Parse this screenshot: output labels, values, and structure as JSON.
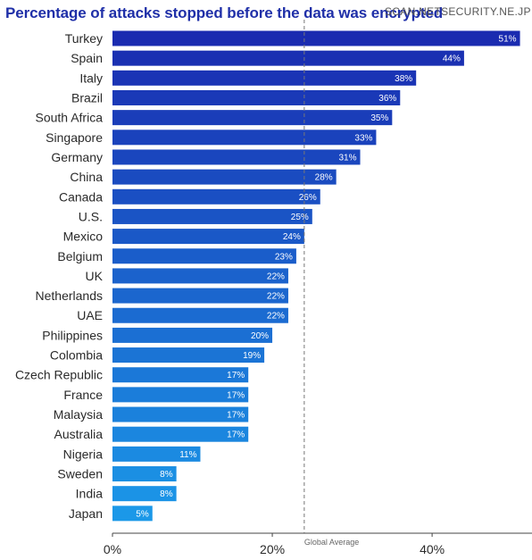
{
  "title": "Percentage of attacks stopped before the data was encrypted",
  "watermark": "SCAN.NETSECURITY.NE.JP",
  "chart_data": {
    "type": "bar",
    "orientation": "horizontal",
    "title": "Percentage of attacks stopped before the data was encrypted",
    "categories": [
      "Turkey",
      "Spain",
      "Italy",
      "Brazil",
      "South Africa",
      "Singapore",
      "Germany",
      "China",
      "Canada",
      "U.S.",
      "Mexico",
      "Belgium",
      "UK",
      "Netherlands",
      "UAE",
      "Philippines",
      "Colombia",
      "Czech Republic",
      "France",
      "Malaysia",
      "Australia",
      "Nigeria",
      "Sweden",
      "India",
      "Japan"
    ],
    "values": [
      51,
      44,
      38,
      36,
      35,
      33,
      31,
      28,
      26,
      25,
      24,
      23,
      22,
      22,
      22,
      20,
      19,
      17,
      17,
      17,
      17,
      11,
      8,
      8,
      5
    ],
    "value_labels": [
      "51%",
      "44%",
      "38%",
      "36%",
      "35%",
      "33%",
      "31%",
      "28%",
      "26%",
      "25%",
      "24%",
      "23%",
      "22%",
      "22%",
      "22%",
      "20%",
      "19%",
      "17%",
      "17%",
      "17%",
      "17%",
      "11%",
      "8%",
      "8%",
      "5%"
    ],
    "x_ticks": [
      0,
      20,
      40
    ],
    "x_tick_labels": [
      "0%",
      "20%",
      "40%"
    ],
    "xlim": [
      0,
      52.5
    ],
    "reference_line": {
      "label": "Global Average",
      "value": 24
    },
    "colors": {
      "start": "#1a2bb0",
      "end": "#1b98e8",
      "title": "#1f2fa8",
      "reference_line": "#777777"
    },
    "grid": false
  }
}
